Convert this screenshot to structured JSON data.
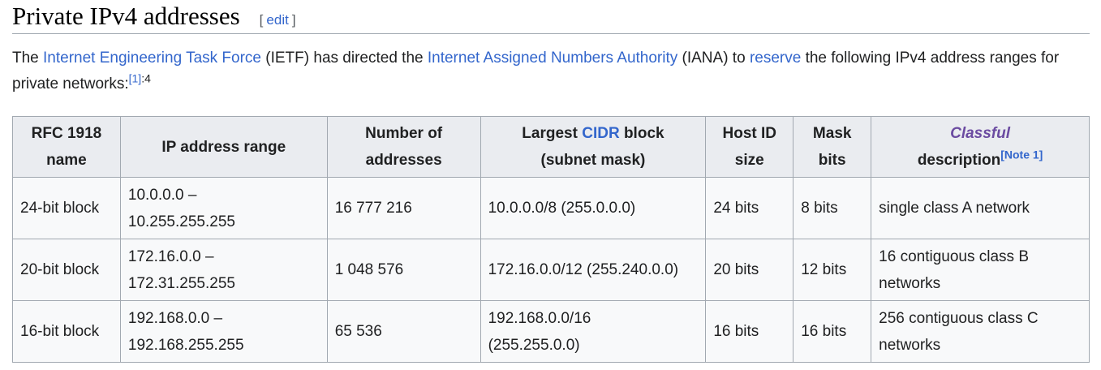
{
  "section": {
    "title": "Private IPv4 addresses",
    "edit_open": "[",
    "edit_label": "edit",
    "edit_close": "]"
  },
  "intro": {
    "p1": "The ",
    "link_ietf": "Internet Engineering Task Force",
    "p2": " (IETF) has directed the ",
    "link_iana": "Internet Assigned Numbers Authority",
    "p3": " (IANA) to ",
    "link_reserve": "reserve",
    "p4": " the following IPv4 address ranges for private networks:",
    "ref": "[1]",
    "ref_page": ":4"
  },
  "table": {
    "headers": {
      "name_line1": "RFC 1918",
      "name_line2": "name",
      "range": "IP address range",
      "count_line1": "Number of",
      "count_line2": "addresses",
      "cidr_pre": "Largest ",
      "cidr_link": "CIDR",
      "cidr_post": " block",
      "cidr_line2": "(subnet mask)",
      "host_line1": "Host ID",
      "host_line2": "size",
      "mask_line1": "Mask",
      "mask_line2": "bits",
      "classful_link": "Classful",
      "desc_line2": "description",
      "note": "[Note 1]"
    },
    "rows": [
      {
        "name": "24-bit block",
        "range_start": "10.0.0.0 –",
        "range_end": "10.255.255.255",
        "count": "16 777 216",
        "cidr_line1": "10.0.0.0/8 (255.0.0.0)",
        "cidr_line2": "",
        "host_bits": "24 bits",
        "mask_bits": "8 bits",
        "desc_line1": "single class A network",
        "desc_line2": ""
      },
      {
        "name": "20-bit block",
        "range_start": "172.16.0.0 –",
        "range_end": "172.31.255.255",
        "count": "1 048 576",
        "cidr_line1": "172.16.0.0/12 (255.240.0.0)",
        "cidr_line2": "",
        "host_bits": "20 bits",
        "mask_bits": "12 bits",
        "desc_line1": "16 contiguous class B",
        "desc_line2": "networks"
      },
      {
        "name": "16-bit block",
        "range_start": "192.168.0.0 –",
        "range_end": "192.168.255.255",
        "count": "65 536",
        "cidr_line1": "192.168.0.0/16",
        "cidr_line2": "(255.255.0.0)",
        "host_bits": "16 bits",
        "mask_bits": "16 bits",
        "desc_line1": "256 contiguous class C",
        "desc_line2": "networks"
      }
    ]
  },
  "colors": {
    "link": "#3366cc",
    "visited_link": "#6b4ba1",
    "header_bg": "#eaecf0",
    "cell_bg": "#f8f9fa",
    "border": "#a2a9b1"
  }
}
